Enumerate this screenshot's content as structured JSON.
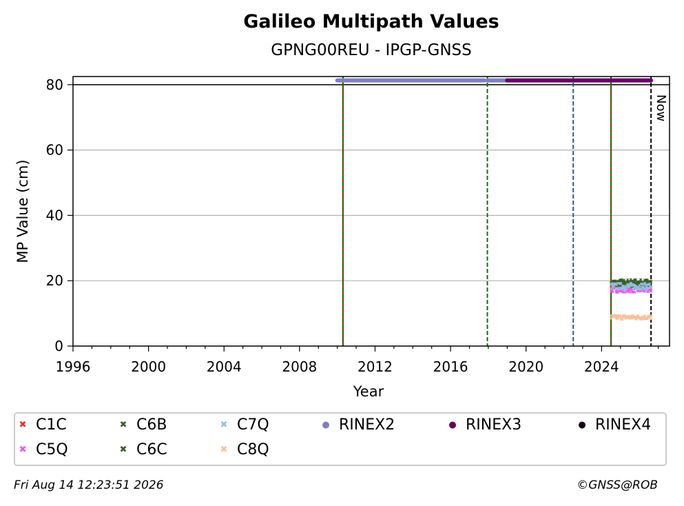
{
  "chart_data": {
    "type": "scatter",
    "title": "Galileo Multipath Values",
    "subtitle": "GPNG00REU - IPGP-GNSS",
    "xlabel": "Year",
    "ylabel": "MP Value (cm)",
    "xlim": [
      1996,
      2027.6
    ],
    "ylim": [
      0,
      82.5
    ],
    "x_ticks": [
      1996,
      2000,
      2004,
      2008,
      2012,
      2016,
      2020,
      2024
    ],
    "y_ticks": [
      0,
      20,
      40,
      60,
      80
    ],
    "grid": "horizontal",
    "reference_line_y": 80,
    "vertical_lines": [
      {
        "x": 2010.3,
        "color": "#cc0000"
      },
      {
        "x": 2010.3,
        "color": "#007700",
        "style": "dashed"
      },
      {
        "x": 2017.95,
        "color": "#007700",
        "style": "dashed"
      },
      {
        "x": 2022.5,
        "color": "#1f5aa6",
        "style": "dashed"
      },
      {
        "x": 2024.5,
        "color": "#cc0000"
      },
      {
        "x": 2024.5,
        "color": "#007700",
        "style": "dashed"
      },
      {
        "x": 2026.62,
        "color": "#000000",
        "style": "dashed",
        "label": "Now"
      }
    ],
    "rinex_bars": [
      {
        "name": "RINEX2",
        "start": 2010.0,
        "end": 2017.8,
        "y": 81.3,
        "color": "#8080c0"
      },
      {
        "name": "RINEX2",
        "start": 2017.95,
        "end": 2019.0,
        "y": 81.3,
        "color": "#8080c0"
      },
      {
        "name": "RINEX3",
        "start": 2019.0,
        "end": 2026.62,
        "y": 81.3,
        "color": "#660066"
      }
    ],
    "series": [
      {
        "name": "C1C",
        "color": "#e8332a",
        "marker": "x",
        "x_range": [
          2024.5,
          2026.62
        ],
        "mean": 18.8,
        "spread": 1.0
      },
      {
        "name": "C5Q",
        "color": "#ee55ee",
        "marker": "x",
        "x_range": [
          2024.5,
          2026.62
        ],
        "mean": 17.2,
        "spread": 0.8
      },
      {
        "name": "C6B",
        "color": "#3a5f2a",
        "marker": "x",
        "x_range": [
          2024.5,
          2026.62
        ],
        "mean": 19.5,
        "spread": 0.9
      },
      {
        "name": "C6C",
        "color": "#3a5f2a",
        "marker": "x",
        "x_range": [
          2024.5,
          2026.62
        ],
        "mean": 19.0,
        "spread": 0.9
      },
      {
        "name": "C7Q",
        "color": "#92c0e0",
        "marker": "x",
        "x_range": [
          2024.5,
          2026.62
        ],
        "mean": 18.3,
        "spread": 1.0
      },
      {
        "name": "C8Q",
        "color": "#f5c19a",
        "marker": "x",
        "x_range": [
          2024.5,
          2026.62
        ],
        "mean": 8.8,
        "spread": 0.7
      }
    ]
  },
  "legend": {
    "items": [
      {
        "label": "C1C",
        "color": "#e8332a",
        "glyph": "✖"
      },
      {
        "label": "C6B",
        "color": "#3a5f2a",
        "glyph": "✖"
      },
      {
        "label": "C7Q",
        "color": "#92c0e0",
        "glyph": "✖"
      },
      {
        "label": "RINEX2",
        "color": "#8080c0",
        "glyph": "●"
      },
      {
        "label": "RINEX3",
        "color": "#660066",
        "glyph": "●"
      },
      {
        "label": "RINEX4",
        "color": "#1a001a",
        "glyph": "●"
      },
      {
        "label": "C5Q",
        "color": "#ee55ee",
        "glyph": "✖"
      },
      {
        "label": "C6C",
        "color": "#3a5f2a",
        "glyph": "✖"
      },
      {
        "label": "C8Q",
        "color": "#f5c19a",
        "glyph": "✖"
      }
    ]
  },
  "footer": {
    "timestamp": "Fri Aug 14 12:23:51 2026",
    "credit": "©GNSS@ROB"
  }
}
